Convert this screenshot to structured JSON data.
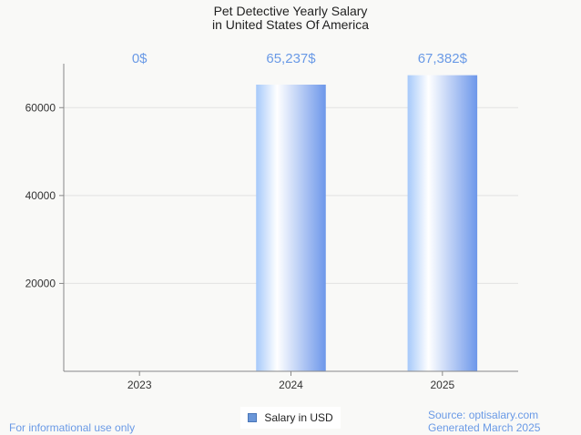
{
  "chart_data": {
    "type": "bar",
    "title": [
      "Pet Detective Yearly Salary",
      "in United States Of America"
    ],
    "categories": [
      "2023",
      "2024",
      "2025"
    ],
    "values": [
      0,
      65237,
      67382
    ],
    "data_labels": [
      "0$",
      "65,237$",
      "67,382$"
    ],
    "y_ticks": [
      20000,
      40000,
      60000
    ],
    "ylim": [
      0,
      70000
    ],
    "xlabel": "",
    "ylabel": "",
    "series_name": "Salary in USD",
    "grid": true,
    "legend_position": "bottom-center"
  },
  "footer": {
    "left": "For informational use only",
    "source": "Source: optisalary.com",
    "generated": "Generated March 2025"
  },
  "colors": {
    "bar_light": "#ffffff",
    "bar_mid": "#a6c9fa",
    "bar_dark": "#6d97ea",
    "label": "#6a9ae6",
    "grid": "#e2e2e2",
    "axis": "#888888"
  }
}
